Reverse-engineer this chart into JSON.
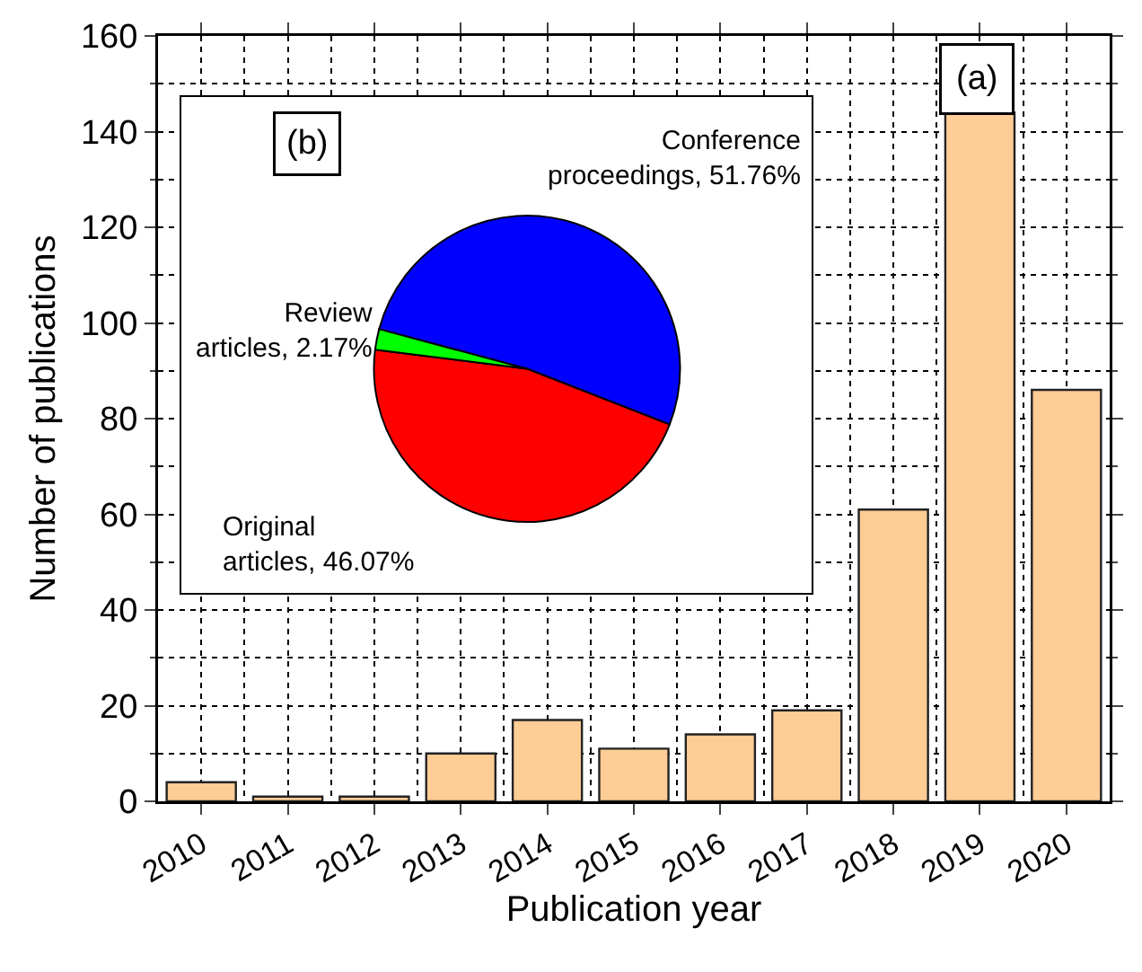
{
  "chart_data": [
    {
      "type": "bar",
      "xlabel": "Publication year",
      "ylabel": "Number of publications",
      "categories": [
        "2010",
        "2011",
        "2012",
        "2013",
        "2014",
        "2015",
        "2016",
        "2017",
        "2018",
        "2019",
        "2020"
      ],
      "values": [
        4,
        1,
        1,
        10,
        17,
        11,
        14,
        19,
        61,
        144,
        86
      ],
      "color": "#fecc95",
      "ylim": [
        0,
        160
      ],
      "yticks": [
        0,
        20,
        40,
        60,
        80,
        100,
        120,
        140,
        160
      ],
      "grid": true,
      "annotations": [
        "(a)"
      ]
    },
    {
      "type": "pie",
      "categories": [
        "Conference proceedings",
        "Original articles",
        "Review articles"
      ],
      "values": [
        51.76,
        46.07,
        2.17
      ],
      "colors": [
        "#0000ff",
        "#ff0000",
        "#00ff00"
      ],
      "value_labels": [
        "51.76%",
        "46.07%",
        "2.17%"
      ],
      "annotations": [
        "(b)"
      ]
    }
  ]
}
